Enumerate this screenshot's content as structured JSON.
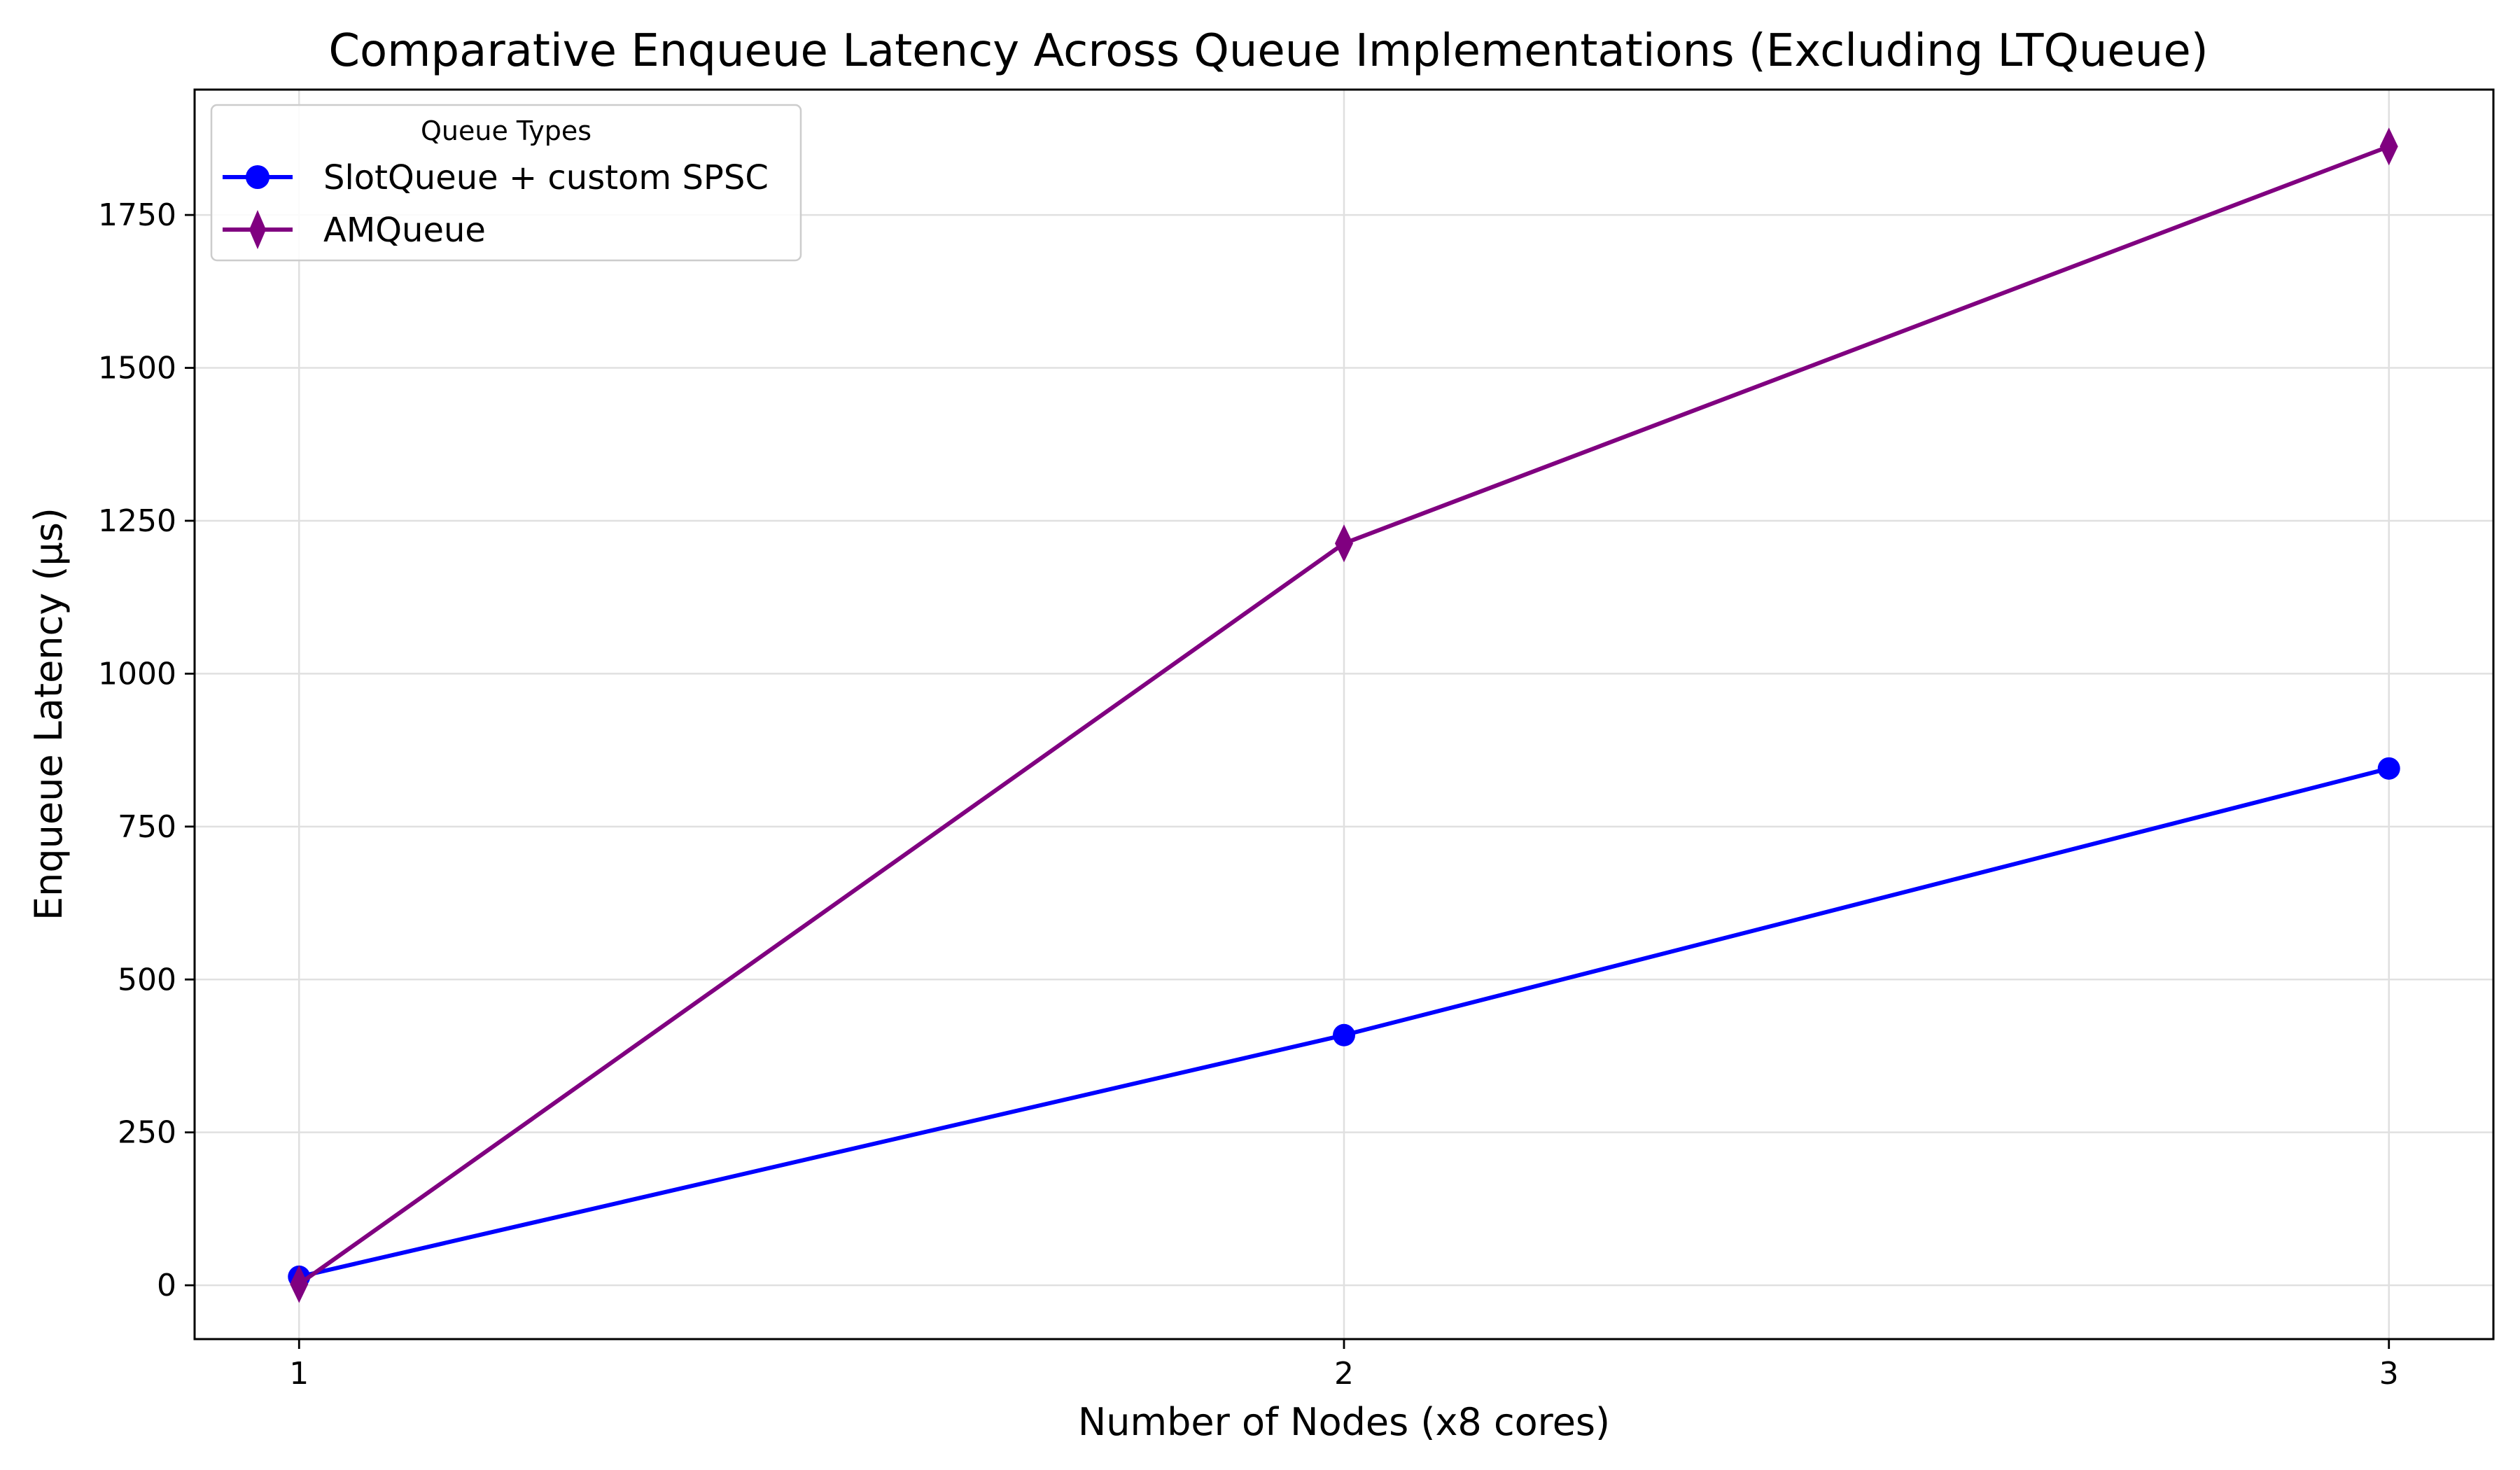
{
  "chart_data": {
    "type": "line",
    "title": "Comparative Enqueue Latency Across Queue Implementations (Excluding LTQueue)",
    "xlabel": "Number of Nodes (x8 cores)",
    "ylabel": "Enqueue Latency (μs)",
    "x": [
      1,
      2,
      3
    ],
    "x_tick_labels": [
      "1",
      "2",
      "3"
    ],
    "xlim": [
      0.9,
      3.1
    ],
    "ylim": [
      -88,
      1955
    ],
    "y_ticks": [
      0,
      250,
      500,
      750,
      1000,
      1250,
      1500,
      1750
    ],
    "y_tick_labels": [
      "0",
      "250",
      "500",
      "750",
      "1000",
      "1250",
      "1500",
      "1750"
    ],
    "grid": true,
    "legend": {
      "title": "Queue Types",
      "placement": "upper left"
    },
    "series": [
      {
        "name": "SlotQueue + custom SPSC",
        "values": [
          14,
          409,
          845
        ],
        "color": "#0000ff",
        "marker": "circle"
      },
      {
        "name": "AMQueue",
        "values": [
          2,
          1213,
          1862
        ],
        "color": "#800080",
        "marker": "thin-diamond"
      }
    ]
  }
}
